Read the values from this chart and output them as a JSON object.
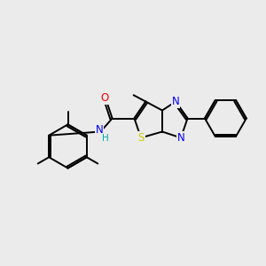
{
  "background_color": "#ebebeb",
  "bond_color": "#000000",
  "atom_colors": {
    "N": "#0000ff",
    "O": "#ff0000",
    "S": "#cccc00",
    "H": "#00aaaa",
    "C": "#000000"
  },
  "figsize": [
    3.0,
    3.0
  ],
  "dpi": 100,
  "xlim": [
    0,
    10
  ],
  "ylim": [
    0,
    10
  ]
}
